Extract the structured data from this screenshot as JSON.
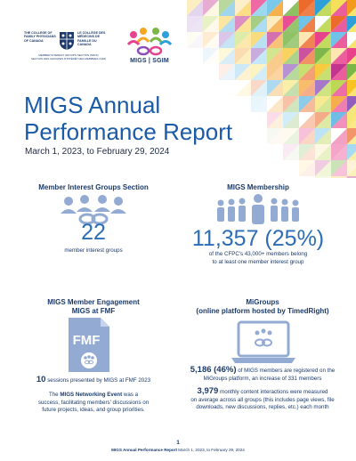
{
  "logos": {
    "cfpc_en": "THE COLLEGE OF FAMILY PHYSICIANS OF CANADA",
    "cfpc_fr": "LE COLLÈGE DES MÉDECINS DE FAMILLE DU CANADA",
    "cfpc_sub1": "MEMBER INTEREST GROUPS SECTION (MIGS)",
    "cfpc_sub2": "SECTION DES GROUPES D'INTÉRÊT DES MEMBRES (GIM)",
    "migs_text": "MIGS | SGIM"
  },
  "title_line1": "MIGS Annual",
  "title_line2": "Performance Report",
  "date_range": "March 1, 2023, to February 29, 2024",
  "sections": {
    "interest_groups": {
      "title": "Member Interest Groups Section",
      "number": "22",
      "caption": "member interest groups"
    },
    "membership": {
      "title": "MIGS Membership",
      "number": "11,357 (25%)",
      "caption_line1": "of the CFPC's 43,000+ members belong",
      "caption_line2": "to at least one member interest group"
    },
    "engagement": {
      "title_line1": "MIGS Member Engagement",
      "title_line2": "MIGS at FMF",
      "icon_text": "FMF",
      "sessions_num": "10",
      "sessions_text": " sessions presented by MIGS at FMF 2023",
      "para_pre": "The ",
      "para_bold": "MIGS Networking Event",
      "para_post1": " was a",
      "para_line2": "success, facilitating members' discussions on",
      "para_line3": "future projects, ideas, and group priorities."
    },
    "migroups": {
      "title_line1": "MiGroups",
      "title_line2": "(online platform hosted by TimedRight)",
      "stat1_num": "5,186 (46%)",
      "stat1_text": " of MIGS members are registered on the",
      "stat1_line2": "MiGroups platform, an increase of 331 members",
      "stat2_num": "3,979",
      "stat2_text": " monthly content interactions were measured",
      "stat2_line2": "on average across all groups (this includes page views, file",
      "stat2_line3": "downloads, new discussions, replies, etc.) each month"
    }
  },
  "footer": {
    "page_number": "1",
    "report_name": "MIGS Annual Performance Report",
    "dates": " March 1, 2023, to February 29, 2024"
  },
  "colors": {
    "title_blue": "#1a5aa6",
    "navy": "#1b3a6b",
    "icon_blue": "#93abd3"
  }
}
